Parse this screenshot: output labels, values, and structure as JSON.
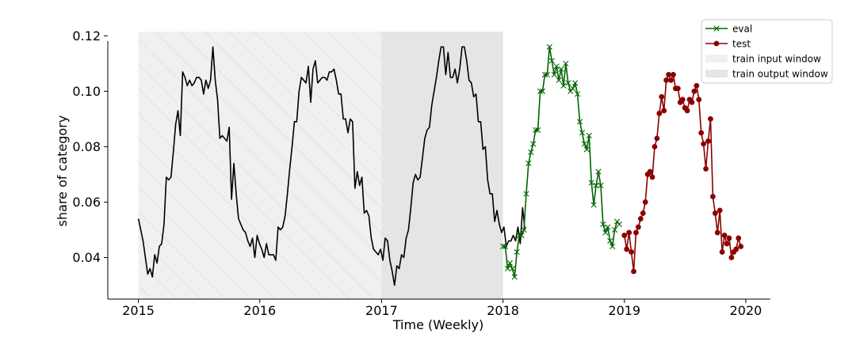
{
  "chart_data": {
    "type": "line",
    "xlabel": "Time (Weekly)",
    "ylabel": "share of category",
    "xlim": [
      "2014-10-01",
      "2020-03-15"
    ],
    "ylim": [
      0.025,
      0.1215
    ],
    "x_ticks": [
      "2015",
      "2016",
      "2017",
      "2018",
      "2019",
      "2020"
    ],
    "y_ticks": [
      "0.04",
      "0.06",
      "0.08",
      "0.10",
      "0.12"
    ],
    "grid": false,
    "legend_position": "top-right",
    "shaded_windows": [
      {
        "name": "train input window",
        "start": "2015-01-01",
        "end": "2017-01-01",
        "color": "#f0f0f0",
        "hatch": true
      },
      {
        "name": "train output window",
        "start": "2017-01-01",
        "end": "2018-01-01",
        "color": "#e5e5e5",
        "hatch": false
      }
    ],
    "series": [
      {
        "name": "",
        "color": "#000000",
        "marker": "none",
        "start": "2015-01-01",
        "step_days": 7,
        "values": [
          0.054,
          0.05,
          0.046,
          0.04,
          0.034,
          0.036,
          0.033,
          0.041,
          0.038,
          0.044,
          0.045,
          0.052,
          0.069,
          0.068,
          0.069,
          0.078,
          0.088,
          0.093,
          0.084,
          0.107,
          0.105,
          0.102,
          0.104,
          0.102,
          0.103,
          0.105,
          0.105,
          0.104,
          0.099,
          0.104,
          0.101,
          0.104,
          0.116,
          0.104,
          0.097,
          0.083,
          0.084,
          0.083,
          0.082,
          0.087,
          0.061,
          0.074,
          0.063,
          0.054,
          0.052,
          0.05,
          0.049,
          0.046,
          0.044,
          0.047,
          0.04,
          0.048,
          0.045,
          0.043,
          0.04,
          0.045,
          0.041,
          0.041,
          0.041,
          0.039,
          0.051,
          0.05,
          0.051,
          0.055,
          0.063,
          0.072,
          0.08,
          0.089,
          0.089,
          0.1,
          0.105,
          0.104,
          0.103,
          0.109,
          0.096,
          0.108,
          0.111,
          0.103,
          0.104,
          0.105,
          0.105,
          0.104,
          0.107,
          0.107,
          0.108,
          0.104,
          0.099,
          0.099,
          0.09,
          0.09,
          0.085,
          0.09,
          0.089,
          0.065,
          0.071,
          0.066,
          0.069,
          0.056,
          0.057,
          0.055,
          0.047,
          0.043,
          0.042,
          0.041,
          0.043,
          0.039,
          0.047,
          0.046,
          0.039,
          0.035,
          0.03,
          0.037,
          0.036,
          0.041,
          0.04,
          0.047,
          0.05,
          0.058,
          0.067,
          0.07,
          0.068,
          0.069,
          0.076,
          0.083,
          0.086,
          0.087,
          0.095,
          0.1,
          0.105,
          0.111,
          0.116,
          0.116,
          0.106,
          0.114,
          0.105,
          0.105,
          0.108,
          0.103,
          0.108,
          0.116,
          0.116,
          0.111,
          0.104,
          0.103,
          0.098,
          0.099,
          0.089,
          0.089,
          0.079,
          0.08,
          0.068,
          0.063,
          0.063,
          0.053,
          0.057,
          0.052,
          0.049,
          0.051,
          0.044,
          0.046,
          0.046,
          0.048,
          0.046,
          0.051,
          0.045,
          0.058,
          0.05
        ]
      },
      {
        "name": "eval",
        "color": "#006400",
        "marker": "x",
        "start": "2018-01-01",
        "step_days": 7,
        "values": [
          0.044,
          0.044,
          0.036,
          0.038,
          0.036,
          0.033,
          0.042,
          0.048,
          0.048,
          0.05,
          0.063,
          0.074,
          0.078,
          0.081,
          0.086,
          0.086,
          0.1,
          0.1,
          0.106,
          0.106,
          0.116,
          0.111,
          0.106,
          0.109,
          0.104,
          0.108,
          0.102,
          0.11,
          0.103,
          0.1,
          0.101,
          0.103,
          0.099,
          0.089,
          0.085,
          0.081,
          0.079,
          0.084,
          0.067,
          0.059,
          0.066,
          0.071,
          0.066,
          0.052,
          0.049,
          0.051,
          0.046,
          0.044,
          0.05,
          0.053,
          0.052
        ]
      },
      {
        "name": "test",
        "color": "#8b0000",
        "marker": "o",
        "start": "2019-01-01",
        "step_days": 7,
        "values": [
          0.048,
          0.043,
          0.049,
          0.042,
          0.035,
          0.049,
          0.051,
          0.054,
          0.056,
          0.06,
          0.07,
          0.071,
          0.069,
          0.08,
          0.083,
          0.092,
          0.098,
          0.093,
          0.104,
          0.106,
          0.104,
          0.106,
          0.101,
          0.101,
          0.096,
          0.097,
          0.094,
          0.093,
          0.097,
          0.096,
          0.1,
          0.102,
          0.097,
          0.085,
          0.081,
          0.072,
          0.082,
          0.09,
          0.062,
          0.056,
          0.049,
          0.057,
          0.042,
          0.048,
          0.045,
          0.047,
          0.04,
          0.042,
          0.043,
          0.047,
          0.044
        ]
      }
    ],
    "legend": [
      "eval",
      "test",
      "train input window",
      "train output window"
    ]
  }
}
